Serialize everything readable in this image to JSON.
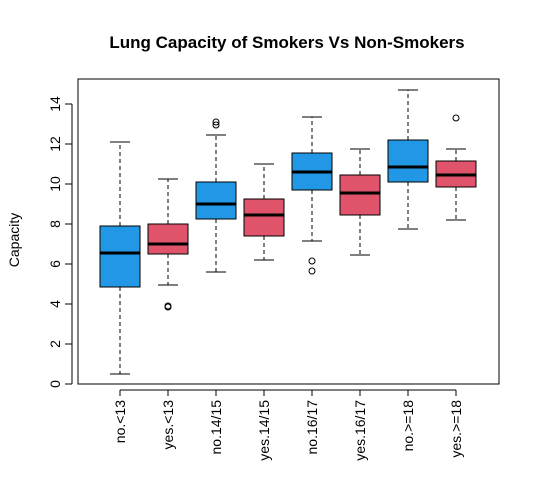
{
  "chart_data": {
    "type": "boxplot",
    "title": "Lung Capacity of Smokers Vs Non-Smokers",
    "xlabel": "",
    "ylabel": "Capacity",
    "ylim": [
      0,
      14.5
    ],
    "yticks": [
      0,
      2,
      4,
      6,
      8,
      10,
      12,
      14
    ],
    "grid": false,
    "legend": "none",
    "categories": [
      "no.<13",
      "yes.<13",
      "no.14/15",
      "yes.14/15",
      "no.16/17",
      "yes.16/17",
      "no.>=18",
      "yes.>=18"
    ],
    "colors": [
      "#2297E6",
      "#DF536B",
      "#2297E6",
      "#DF536B",
      "#2297E6",
      "#DF536B",
      "#2297E6",
      "#DF536B"
    ],
    "boxes": [
      {
        "category": "no.<13",
        "whisker_low": 0.5,
        "q1": 4.85,
        "median": 6.55,
        "q3": 7.9,
        "whisker_high": 12.1,
        "outliers": []
      },
      {
        "category": "yes.<13",
        "whisker_low": 4.95,
        "q1": 6.5,
        "median": 7.0,
        "q3": 8.0,
        "whisker_high": 10.25,
        "outliers": [
          3.85,
          3.9
        ]
      },
      {
        "category": "no.14/15",
        "whisker_low": 5.6,
        "q1": 8.25,
        "median": 9.0,
        "q3": 10.1,
        "whisker_high": 12.45,
        "outliers": [
          12.95,
          13.1
        ]
      },
      {
        "category": "yes.14/15",
        "whisker_low": 6.2,
        "q1": 7.4,
        "median": 8.45,
        "q3": 9.25,
        "whisker_high": 11.0,
        "outliers": []
      },
      {
        "category": "no.16/17",
        "whisker_low": 7.15,
        "q1": 9.7,
        "median": 10.6,
        "q3": 11.55,
        "whisker_high": 13.35,
        "outliers": [
          5.65,
          6.15
        ]
      },
      {
        "category": "yes.16/17",
        "whisker_low": 6.45,
        "q1": 8.45,
        "median": 9.55,
        "q3": 10.45,
        "whisker_high": 11.75,
        "outliers": []
      },
      {
        "category": "no.>=18",
        "whisker_low": 7.75,
        "q1": 10.1,
        "median": 10.85,
        "q3": 12.2,
        "whisker_high": 14.7,
        "outliers": []
      },
      {
        "category": "yes.>=18",
        "whisker_low": 8.2,
        "q1": 9.85,
        "median": 10.45,
        "q3": 11.15,
        "whisker_high": 11.75,
        "outliers": [
          13.3
        ]
      }
    ]
  }
}
